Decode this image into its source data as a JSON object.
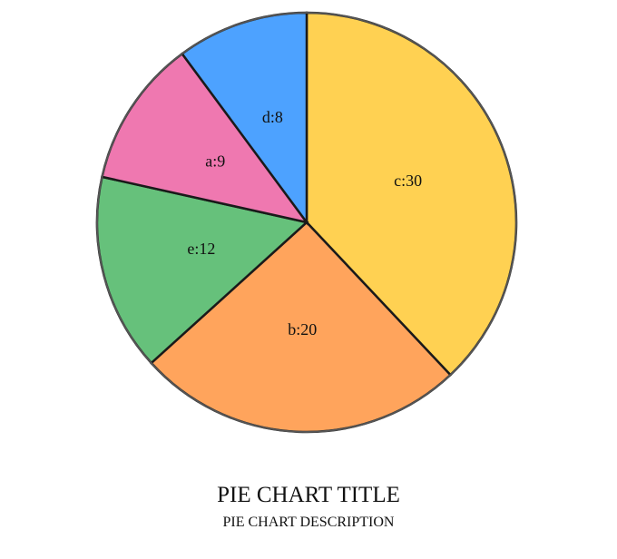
{
  "chart_data": {
    "type": "pie",
    "title": "PIE CHART TITLE",
    "subtitle": "PIE CHART DESCRIPTION",
    "slices": [
      {
        "name": "c",
        "value": 30,
        "label": "c:30",
        "color": "#FFD152"
      },
      {
        "name": "b",
        "value": 20,
        "label": "b:20",
        "color": "#FFA45C"
      },
      {
        "name": "e",
        "value": 12,
        "label": "e:12",
        "color": "#66C17B"
      },
      {
        "name": "a",
        "value": 9,
        "label": "a:9",
        "color": "#EF78B0"
      },
      {
        "name": "d",
        "value": 8,
        "label": "d:8",
        "color": "#4DA2FF"
      }
    ],
    "legend": "none"
  }
}
